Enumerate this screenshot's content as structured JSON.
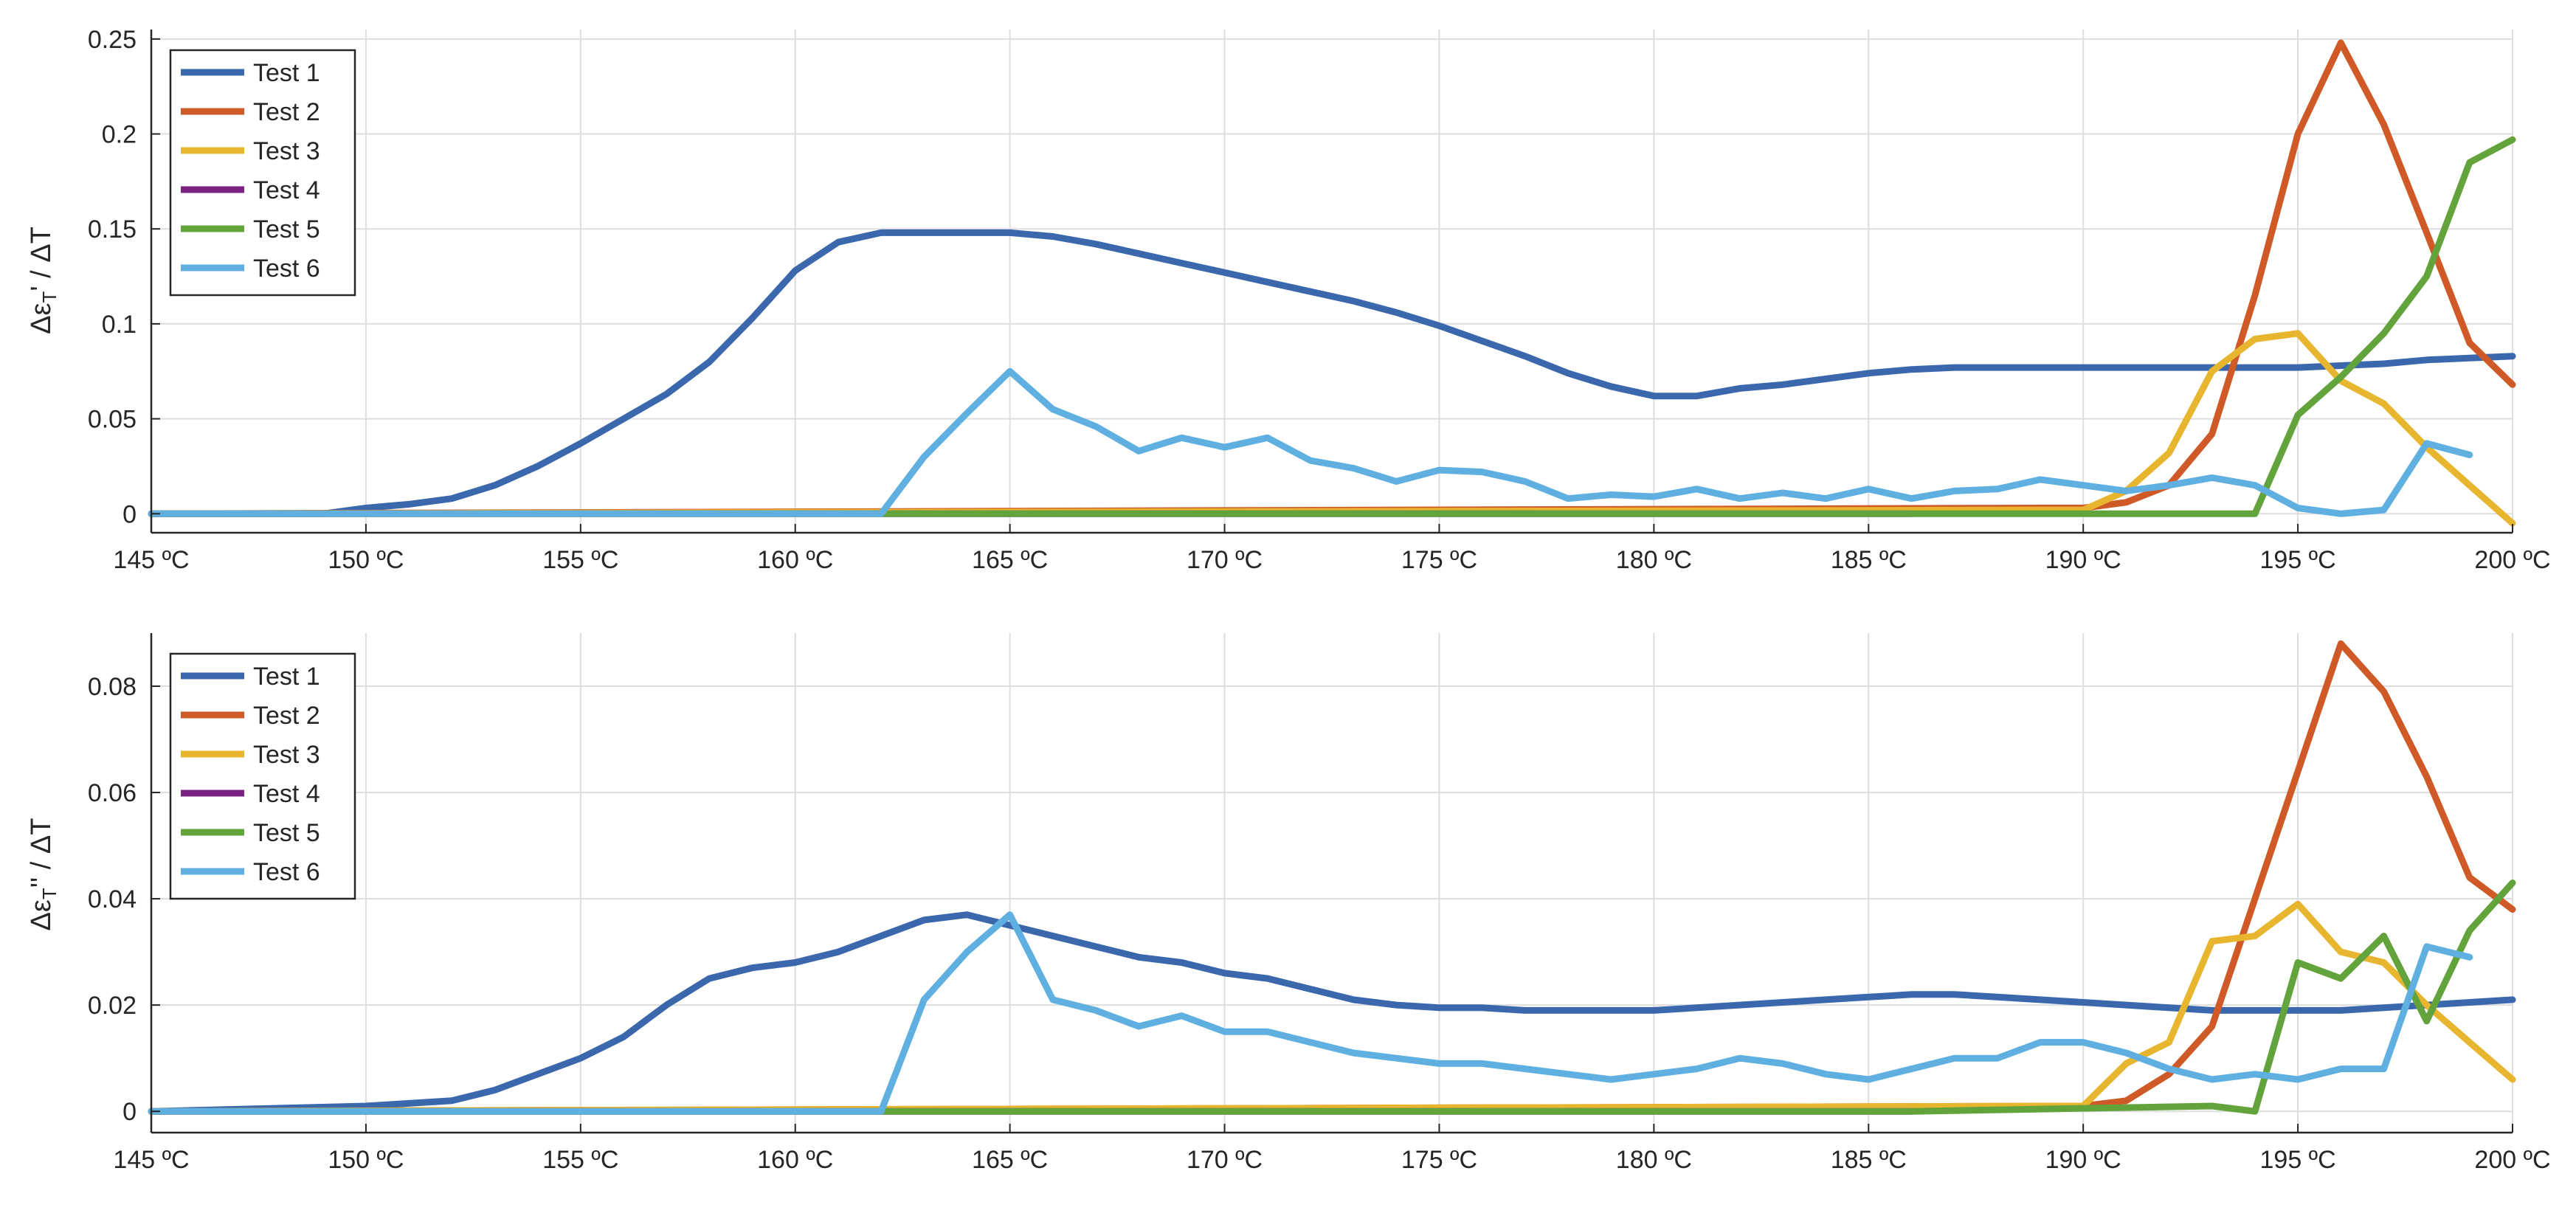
{
  "colors": {
    "Test 1": "#3b68ad",
    "Test 2": "#d05a27",
    "Test 3": "#e8b52e",
    "Test 4": "#7a2182",
    "Test 5": "#62a33c",
    "Test 6": "#5fb0e1",
    "grid": "#dedede",
    "axis": "#262626"
  },
  "chart_data": [
    {
      "type": "line",
      "ylabel": "Δε_T' / ΔT",
      "xlim": [
        145,
        200
      ],
      "ylim": [
        -0.01,
        0.255
      ],
      "x_ticks": [
        145,
        150,
        155,
        160,
        165,
        170,
        175,
        180,
        185,
        190,
        195,
        200
      ],
      "x_tick_labels": [
        "145 ºC",
        "150 ºC",
        "155 ºC",
        "160 ºC",
        "165 ºC",
        "170 ºC",
        "175 ºC",
        "180 ºC",
        "185 ºC",
        "190 ºC",
        "195 ºC",
        "200 ºC"
      ],
      "y_ticks": [
        0,
        0.05,
        0.1,
        0.15,
        0.2,
        0.25
      ],
      "y_tick_labels": [
        "0",
        "0.05",
        "0.1",
        "0.15",
        "0.2",
        "0.25"
      ],
      "grid": true,
      "legend_position": "top-left",
      "series": [
        {
          "name": "Test 1",
          "x": [
            145,
            149,
            150,
            151,
            152,
            153,
            154,
            155,
            156,
            157,
            158,
            159,
            160,
            161,
            162,
            163,
            164,
            165,
            166,
            167,
            168,
            169,
            170,
            171,
            172,
            173,
            174,
            175,
            176,
            177,
            178,
            179,
            180,
            181,
            182,
            183,
            184,
            185,
            186,
            187,
            188,
            189,
            190,
            191,
            192,
            193,
            194,
            195,
            196,
            197,
            198,
            199,
            200
          ],
          "y": [
            0,
            0,
            0.003,
            0.005,
            0.008,
            0.015,
            0.025,
            0.037,
            0.05,
            0.063,
            0.08,
            0.103,
            0.128,
            0.143,
            0.148,
            0.148,
            0.148,
            0.148,
            0.146,
            0.142,
            0.137,
            0.132,
            0.127,
            0.122,
            0.117,
            0.112,
            0.106,
            0.099,
            0.091,
            0.083,
            0.074,
            0.067,
            0.062,
            0.062,
            0.066,
            0.068,
            0.071,
            0.074,
            0.076,
            0.077,
            0.077,
            0.077,
            0.077,
            0.077,
            0.077,
            0.077,
            0.077,
            0.077,
            0.078,
            0.079,
            0.081,
            0.082,
            0.083
          ]
        },
        {
          "name": "Test 2",
          "x": [
            145,
            189,
            190,
            191,
            192,
            193,
            194,
            195,
            196,
            197,
            198,
            199,
            200
          ],
          "y": [
            0,
            0.003,
            0.003,
            0.006,
            0.015,
            0.042,
            0.115,
            0.2,
            0.248,
            0.205,
            0.148,
            0.09,
            0.068
          ]
        },
        {
          "name": "Test 3",
          "x": [
            145,
            190,
            191,
            192,
            193,
            194,
            195,
            196,
            197,
            198,
            199,
            200
          ],
          "y": [
            0,
            0.002,
            0.012,
            0.032,
            0.075,
            0.092,
            0.095,
            0.07,
            0.058,
            0.035,
            0.015,
            -0.005
          ]
        },
        {
          "name": "Test 4",
          "x": [
            145,
            186
          ],
          "y": [
            0,
            0
          ]
        },
        {
          "name": "Test 5",
          "x": [
            145,
            186,
            194,
            195,
            196,
            197,
            198,
            199,
            200
          ],
          "y": [
            0,
            0,
            0,
            0.052,
            0.072,
            0.095,
            0.125,
            0.185,
            0.197
          ]
        },
        {
          "name": "Test 6",
          "x": [
            145,
            161,
            162,
            163,
            164,
            165,
            166,
            167,
            168,
            169,
            170,
            171,
            172,
            173,
            174,
            175,
            176,
            177,
            178,
            179,
            180,
            181,
            182,
            183,
            184,
            185,
            186,
            187,
            188,
            189,
            190,
            191,
            192,
            193,
            194,
            195,
            196,
            197,
            198,
            199
          ],
          "y": [
            0,
            0,
            0,
            0.03,
            0.053,
            0.075,
            0.055,
            0.046,
            0.033,
            0.04,
            0.035,
            0.04,
            0.028,
            0.024,
            0.017,
            0.023,
            0.022,
            0.017,
            0.008,
            0.01,
            0.009,
            0.013,
            0.008,
            0.011,
            0.008,
            0.013,
            0.008,
            0.012,
            0.013,
            0.018,
            0.015,
            0.012,
            0.015,
            0.019,
            0.015,
            0.003,
            0.0,
            0.002,
            0.037,
            0.031
          ]
        }
      ],
      "legend": [
        "Test 1",
        "Test 2",
        "Test 3",
        "Test 4",
        "Test 5",
        "Test 6"
      ]
    },
    {
      "type": "line",
      "ylabel": "Δε_T'' / ΔT",
      "xlim": [
        145,
        200
      ],
      "ylim": [
        -0.004,
        0.09
      ],
      "x_ticks": [
        145,
        150,
        155,
        160,
        165,
        170,
        175,
        180,
        185,
        190,
        195,
        200
      ],
      "x_tick_labels": [
        "145 ºC",
        "150 ºC",
        "155 ºC",
        "160 ºC",
        "165 ºC",
        "170 ºC",
        "175 ºC",
        "180 ºC",
        "185 ºC",
        "190 ºC",
        "195 ºC",
        "200 ºC"
      ],
      "y_ticks": [
        0,
        0.02,
        0.04,
        0.06,
        0.08
      ],
      "y_tick_labels": [
        "0",
        "0.02",
        "0.04",
        "0.06",
        "0.08"
      ],
      "grid": true,
      "legend_position": "top-left",
      "series": [
        {
          "name": "Test 1",
          "x": [
            145,
            150,
            151,
            152,
            153,
            154,
            155,
            156,
            157,
            158,
            159,
            160,
            161,
            162,
            163,
            164,
            165,
            166,
            167,
            168,
            169,
            170,
            171,
            172,
            173,
            174,
            175,
            176,
            177,
            178,
            179,
            180,
            181,
            182,
            183,
            184,
            185,
            186,
            187,
            188,
            189,
            190,
            191,
            192,
            193,
            194,
            195,
            196,
            197,
            198,
            199,
            200
          ],
          "y": [
            0,
            0.001,
            0.0015,
            0.002,
            0.004,
            0.007,
            0.01,
            0.014,
            0.02,
            0.025,
            0.027,
            0.028,
            0.03,
            0.033,
            0.036,
            0.037,
            0.035,
            0.033,
            0.031,
            0.029,
            0.028,
            0.026,
            0.025,
            0.023,
            0.021,
            0.02,
            0.0195,
            0.0195,
            0.019,
            0.019,
            0.019,
            0.019,
            0.0195,
            0.02,
            0.0205,
            0.021,
            0.0215,
            0.022,
            0.022,
            0.0215,
            0.021,
            0.0205,
            0.02,
            0.0195,
            0.019,
            0.019,
            0.019,
            0.019,
            0.0195,
            0.02,
            0.0205,
            0.021
          ]
        },
        {
          "name": "Test 2",
          "x": [
            145,
            190,
            191,
            192,
            193,
            194,
            195,
            196,
            197,
            198,
            199,
            200
          ],
          "y": [
            0,
            0.001,
            0.002,
            0.007,
            0.016,
            0.04,
            0.064,
            0.088,
            0.079,
            0.063,
            0.044,
            0.038
          ]
        },
        {
          "name": "Test 3",
          "x": [
            145,
            190,
            191,
            192,
            193,
            194,
            195,
            196,
            197,
            198,
            199,
            200
          ],
          "y": [
            0,
            0.001,
            0.009,
            0.013,
            0.032,
            0.033,
            0.039,
            0.03,
            0.028,
            0.02,
            0.013,
            0.006
          ]
        },
        {
          "name": "Test 4",
          "x": [
            145,
            186
          ],
          "y": [
            0,
            0
          ]
        },
        {
          "name": "Test 5",
          "x": [
            145,
            186,
            193,
            194,
            195,
            196,
            197,
            198,
            199,
            200
          ],
          "y": [
            0,
            0,
            0.001,
            0,
            0.028,
            0.025,
            0.033,
            0.017,
            0.034,
            0.043
          ]
        },
        {
          "name": "Test 6",
          "x": [
            145,
            161,
            162,
            163,
            164,
            165,
            166,
            167,
            168,
            169,
            170,
            171,
            172,
            173,
            174,
            175,
            176,
            177,
            178,
            179,
            180,
            181,
            182,
            183,
            184,
            185,
            186,
            187,
            188,
            189,
            190,
            191,
            192,
            193,
            194,
            195,
            196,
            197,
            198,
            199
          ],
          "y": [
            0,
            0,
            0,
            0.021,
            0.03,
            0.037,
            0.021,
            0.019,
            0.016,
            0.018,
            0.015,
            0.015,
            0.013,
            0.011,
            0.01,
            0.009,
            0.009,
            0.008,
            0.007,
            0.006,
            0.007,
            0.008,
            0.01,
            0.009,
            0.007,
            0.006,
            0.008,
            0.01,
            0.01,
            0.013,
            0.013,
            0.011,
            0.008,
            0.006,
            0.007,
            0.006,
            0.008,
            0.008,
            0.031,
            0.029
          ]
        }
      ],
      "legend": [
        "Test 1",
        "Test 2",
        "Test 3",
        "Test 4",
        "Test 5",
        "Test 6"
      ]
    }
  ]
}
